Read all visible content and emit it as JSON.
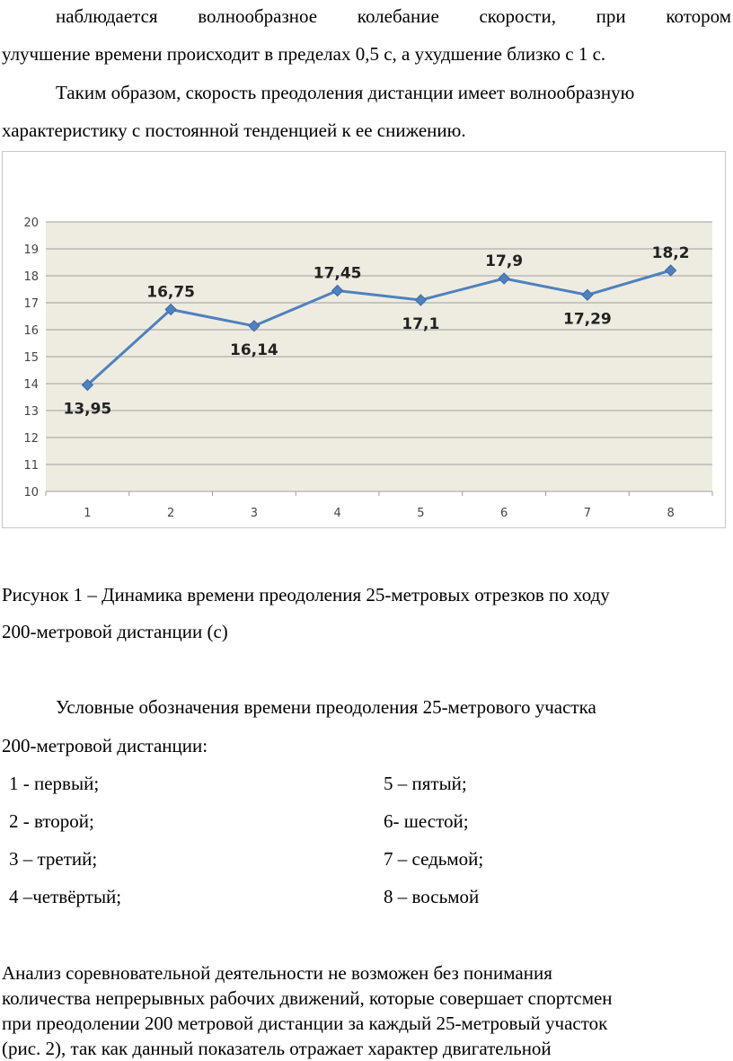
{
  "intro": {
    "line1": "наблюдается волнообразное колебание скорости, при котором",
    "line2": "улучшение времени происходит в пределах 0,5 с, а ухудшение близко с 1 с.",
    "line3": "Таким образом, скорость преодоления дистанции имеет волнообразную",
    "line4": "характеристику с постоянной тенденцией к ее снижению."
  },
  "chart_data": {
    "type": "line",
    "x": [
      1,
      2,
      3,
      4,
      5,
      6,
      7,
      8
    ],
    "categories": [
      "1",
      "2",
      "3",
      "4",
      "5",
      "6",
      "7",
      "8"
    ],
    "series": [
      {
        "values": [
          13.95,
          16.75,
          16.14,
          17.45,
          17.1,
          17.9,
          17.29,
          18.2
        ]
      }
    ],
    "data_labels": [
      "13,95",
      "16,75",
      "16,14",
      "17,45",
      "17,1",
      "17,9",
      "17,29",
      "18,2"
    ],
    "y_ticks": [
      "10",
      "11",
      "12",
      "13",
      "14",
      "15",
      "16",
      "17",
      "18",
      "19",
      "20"
    ],
    "ylim": [
      10,
      20
    ],
    "grid": true,
    "line_color": "#4f81bd",
    "plot_bg": "#eeece1",
    "title": "",
    "xlabel": "",
    "ylabel": ""
  },
  "caption": {
    "line1": "Рисунок 1 – Динамика времени преодоления 25-метровых отрезков по ходу",
    "line2": "200-метровой дистанции (с)"
  },
  "legend": {
    "heading1": "Условные обозначения времени преодоления 25-метрового участка",
    "heading2": "200-метровой дистанции:",
    "items": [
      "1 - первый;",
      "5 – пятый;",
      "2 - второй;",
      "6- шестой;",
      "3 – третий;",
      "7 – седьмой;",
      "4 –четвёртый;",
      "8 – восьмой"
    ]
  },
  "analysis": {
    "line1": "Анализ соревновательной деятельности не возможен без понимания",
    "line2": "количества непрерывных рабочих движений, которые совершает спортсмен",
    "line3": "при преодолении 200 метровой дистанции за каждый 25-метровый участок",
    "line4": "(рис. 2), так как данный показатель отражает характер двигательной"
  }
}
